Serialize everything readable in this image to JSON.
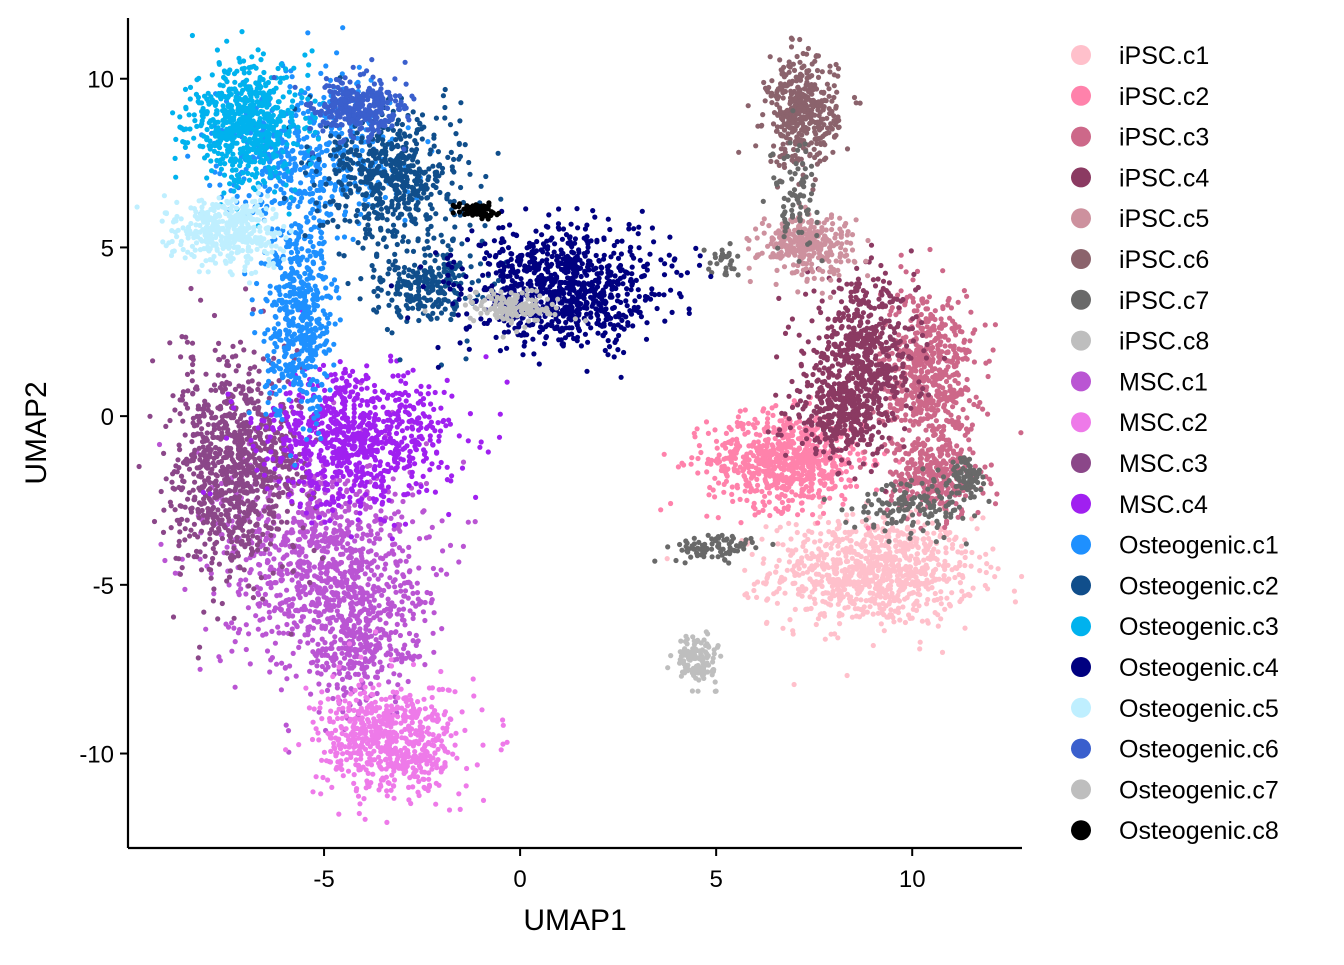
{
  "chart_data": {
    "type": "scatter",
    "title": "",
    "xlabel": "UMAP1",
    "ylabel": "UMAP2",
    "xlim": [
      -10,
      12.8
    ],
    "ylim": [
      -12.8,
      11.8
    ],
    "x_ticks": [
      -5,
      0,
      5,
      10
    ],
    "y_ticks": [
      10,
      5,
      0,
      -5,
      -10
    ],
    "x_tick_labels": [
      "-5",
      "0",
      "5",
      "10"
    ],
    "y_tick_labels": [
      "10",
      "5",
      "0",
      "-5",
      "-10"
    ],
    "grid": false,
    "legend_position": "right",
    "series": [
      {
        "name": "iPSC.c1",
        "color": "#FFC0CB",
        "clusters": [
          {
            "cx": 9.0,
            "cy": -4.6,
            "sx": 1.3,
            "sy": 0.8,
            "n": 900
          }
        ]
      },
      {
        "name": "iPSC.c2",
        "color": "#FF82AB",
        "clusters": [
          {
            "cx": 6.8,
            "cy": -1.3,
            "sx": 1.0,
            "sy": 0.7,
            "n": 700
          }
        ]
      },
      {
        "name": "iPSC.c3",
        "color": "#CD6889",
        "clusters": [
          {
            "cx": 10.4,
            "cy": 1.2,
            "sx": 0.6,
            "sy": 1.3,
            "n": 600
          },
          {
            "cx": 10.6,
            "cy": -1.8,
            "sx": 0.6,
            "sy": 0.6,
            "n": 250
          }
        ]
      },
      {
        "name": "iPSC.c4",
        "color": "#8B3A62",
        "clusters": [
          {
            "cx": 8.7,
            "cy": 1.5,
            "sx": 0.7,
            "sy": 1.2,
            "n": 650
          },
          {
            "cx": 8.0,
            "cy": 0.0,
            "sx": 0.5,
            "sy": 0.5,
            "n": 200
          }
        ]
      },
      {
        "name": "iPSC.c5",
        "color": "#CD919E",
        "clusters": [
          {
            "cx": 7.3,
            "cy": 5.1,
            "sx": 0.6,
            "sy": 0.45,
            "n": 300
          }
        ]
      },
      {
        "name": "iPSC.c6",
        "color": "#8B636C",
        "clusters": [
          {
            "cx": 7.2,
            "cy": 9.0,
            "sx": 0.45,
            "sy": 0.8,
            "n": 420
          }
        ]
      },
      {
        "name": "iPSC.c7",
        "color": "#696969",
        "clusters": [
          {
            "cx": 11.4,
            "cy": -1.8,
            "sx": 0.2,
            "sy": 0.3,
            "n": 80
          },
          {
            "cx": 5.0,
            "cy": -3.9,
            "sx": 0.6,
            "sy": 0.2,
            "n": 80
          },
          {
            "cx": 7.0,
            "cy": 6.6,
            "sx": 0.3,
            "sy": 0.8,
            "n": 80
          },
          {
            "cx": 5.2,
            "cy": 4.6,
            "sx": 0.2,
            "sy": 0.2,
            "n": 30
          },
          {
            "cx": 10.1,
            "cy": -2.6,
            "sx": 0.8,
            "sy": 0.4,
            "n": 140
          }
        ]
      },
      {
        "name": "iPSC.c8",
        "color": "#BEBEBE",
        "clusters": [
          {
            "cx": 4.5,
            "cy": -7.2,
            "sx": 0.25,
            "sy": 0.35,
            "n": 130
          }
        ]
      },
      {
        "name": "MSC.c1",
        "color": "#BA55D3",
        "clusters": [
          {
            "cx": -5.0,
            "cy": -4.3,
            "sx": 1.3,
            "sy": 1.6,
            "n": 950
          },
          {
            "cx": -4.1,
            "cy": -6.8,
            "sx": 0.8,
            "sy": 0.9,
            "n": 300
          }
        ]
      },
      {
        "name": "MSC.c2",
        "color": "#EE7AE9",
        "clusters": [
          {
            "cx": -3.3,
            "cy": -9.6,
            "sx": 0.9,
            "sy": 0.85,
            "n": 650
          }
        ]
      },
      {
        "name": "MSC.c3",
        "color": "#8B4789",
        "clusters": [
          {
            "cx": -7.6,
            "cy": -1.6,
            "sx": 0.65,
            "sy": 1.7,
            "n": 650
          },
          {
            "cx": -6.5,
            "cy": -1.2,
            "sx": 0.6,
            "sy": 1.2,
            "n": 300
          }
        ]
      },
      {
        "name": "MSC.c4",
        "color": "#A020F0",
        "clusters": [
          {
            "cx": -4.2,
            "cy": -0.7,
            "sx": 1.2,
            "sy": 1.0,
            "n": 820
          }
        ]
      },
      {
        "name": "Osteogenic.c1",
        "color": "#1E90FF",
        "clusters": [
          {
            "cx": -5.6,
            "cy": 2.8,
            "sx": 0.45,
            "sy": 1.4,
            "n": 500
          },
          {
            "cx": -5.4,
            "cy": 7.6,
            "sx": 1.1,
            "sy": 1.2,
            "n": 500
          }
        ]
      },
      {
        "name": "Osteogenic.c2",
        "color": "#104E8B",
        "clusters": [
          {
            "cx": -3.2,
            "cy": 7.1,
            "sx": 0.9,
            "sy": 1.0,
            "n": 550
          },
          {
            "cx": -2.3,
            "cy": 3.9,
            "sx": 0.7,
            "sy": 0.6,
            "n": 250
          }
        ]
      },
      {
        "name": "Osteogenic.c3",
        "color": "#00B2EE",
        "clusters": [
          {
            "cx": -7.0,
            "cy": 8.7,
            "sx": 0.7,
            "sy": 0.9,
            "n": 620
          }
        ]
      },
      {
        "name": "Osteogenic.c4",
        "color": "#000080",
        "clusters": [
          {
            "cx": 1.1,
            "cy": 3.8,
            "sx": 1.25,
            "sy": 0.85,
            "n": 900
          }
        ]
      },
      {
        "name": "Osteogenic.c5",
        "color": "#BFEFFF",
        "clusters": [
          {
            "cx": -7.4,
            "cy": 5.5,
            "sx": 0.65,
            "sy": 0.5,
            "n": 420
          }
        ]
      },
      {
        "name": "Osteogenic.c6",
        "color": "#3A5FCD",
        "clusters": [
          {
            "cx": -4.2,
            "cy": 9.1,
            "sx": 0.6,
            "sy": 0.45,
            "n": 320
          }
        ]
      },
      {
        "name": "Osteogenic.c7",
        "color": "#BEBEBE",
        "clusters": [
          {
            "cx": -0.2,
            "cy": 3.2,
            "sx": 0.6,
            "sy": 0.25,
            "n": 150
          }
        ]
      },
      {
        "name": "Osteogenic.c8",
        "color": "#000000",
        "clusters": [
          {
            "cx": -1.1,
            "cy": 6.1,
            "sx": 0.25,
            "sy": 0.12,
            "n": 70
          }
        ]
      }
    ]
  }
}
